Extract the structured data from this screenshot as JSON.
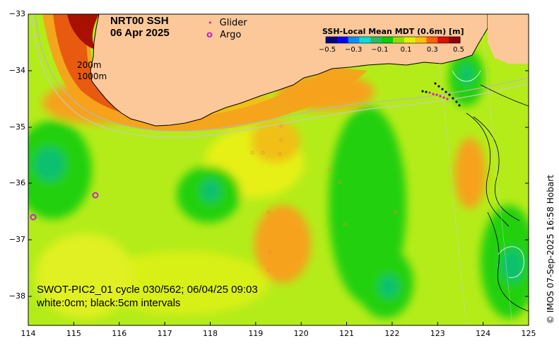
{
  "title": {
    "line1": "NRT00 SSH",
    "line2": "06 Apr 2025"
  },
  "legend": {
    "glider": {
      "symbol": "•",
      "label": "Glider",
      "color": "#e0209a"
    },
    "argo": {
      "symbol": "o",
      "label": "Argo",
      "color": "#cc22cc"
    }
  },
  "colorbar": {
    "title": "SSH-Local Mean MDT (0.6m) [m]",
    "ticks": [
      "−0.5",
      "−0.3",
      "−0.1",
      "0.1",
      "0.3",
      "0.5"
    ],
    "colors": [
      "#000080",
      "#0000ff",
      "#0090ff",
      "#00e0e0",
      "#20c060",
      "#00d000",
      "#90e000",
      "#e0f000",
      "#ffc000",
      "#ff6000",
      "#e01000",
      "#900000"
    ]
  },
  "contour_labels": {
    "shallow": "200m",
    "deep": "1000m"
  },
  "annotation": {
    "line1": "SWOT-PIC2_01 cycle 030/562; 06/04/25 09:03",
    "line2": "white:0cm; black:5cm intervals"
  },
  "credit": "© IMOS 07-Sep-2025 16:58 Hobart",
  "axes": {
    "y_ticks": [
      "−33",
      "−34",
      "−35",
      "−36",
      "−37",
      "−38"
    ],
    "x_ticks": [
      "114",
      "115",
      "116",
      "117",
      "118",
      "119",
      "120",
      "121",
      "122",
      "123",
      "124",
      "125"
    ],
    "lon_range": [
      114,
      125
    ],
    "lat_range": [
      -38.5,
      -33
    ]
  },
  "colors": {
    "land": "#fcc89a",
    "ocean_base": "#b4ec1a",
    "green": "#22d00c",
    "teal": "#10c070",
    "orange": "#f6a21c",
    "red_orange": "#e85a10",
    "dark_red": "#a81000"
  }
}
